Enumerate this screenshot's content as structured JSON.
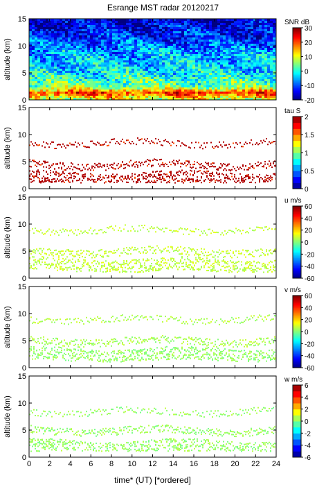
{
  "title": "Esrange MST radar 20120217",
  "chart_data": {
    "type": "heatmap",
    "title": "Esrange MST radar 20120217",
    "xlabel": "time* (UT)   [*ordered]",
    "x_range": [
      0,
      24
    ],
    "x_ticks": [
      0,
      2,
      4,
      6,
      8,
      10,
      12,
      14,
      16,
      18,
      20,
      22,
      24
    ],
    "panels": [
      {
        "name": "snr",
        "ylabel": "altitude (km)",
        "y_range": [
          0,
          15
        ],
        "y_ticks": [
          0,
          5,
          10,
          15
        ],
        "colorbar_label": "SNR dB",
        "colorbar_range": [
          -20,
          30
        ],
        "colorbar_ticks": [
          -20,
          -10,
          0,
          10,
          20,
          30
        ],
        "colorbar_type": "continuous",
        "description_profile": [
          {
            "alt": 0.5,
            "value": 10
          },
          {
            "alt": 1.5,
            "value": 22
          },
          {
            "alt": 2.5,
            "value": 5
          },
          {
            "alt": 5.0,
            "value": -2
          },
          {
            "alt": 8.5,
            "value": -5
          },
          {
            "alt": 12.0,
            "value": -12
          },
          {
            "alt": 14.5,
            "value": -16
          }
        ]
      },
      {
        "name": "tau",
        "ylabel": "altitude (km)",
        "y_range": [
          0,
          15
        ],
        "y_ticks": [
          0,
          5,
          10,
          15
        ],
        "colorbar_label": "tau S",
        "colorbar_range": [
          0,
          2
        ],
        "colorbar_ticks": [
          0,
          0.5,
          1,
          1.5,
          2
        ],
        "colorbar_type": "discrete",
        "description_profile": [
          {
            "alt": 2.0,
            "value": 2.0
          },
          {
            "alt": 4.5,
            "value": 2.0
          },
          {
            "alt": 8.5,
            "value": 2.0
          }
        ]
      },
      {
        "name": "u",
        "ylabel": "altitude (km)",
        "y_range": [
          0,
          15
        ],
        "y_ticks": [
          0,
          5,
          10,
          15
        ],
        "colorbar_label": "u m/s",
        "colorbar_range": [
          -60,
          60
        ],
        "colorbar_ticks": [
          -60,
          -40,
          -20,
          0,
          20,
          40,
          60
        ],
        "colorbar_type": "continuous",
        "description_profile": [
          {
            "alt": 2.5,
            "value": 8
          },
          {
            "alt": 5.0,
            "value": 8
          },
          {
            "alt": 9.0,
            "value": 8
          }
        ]
      },
      {
        "name": "v",
        "ylabel": "altitude (km)",
        "y_range": [
          0,
          15
        ],
        "y_ticks": [
          0,
          5,
          10,
          15
        ],
        "colorbar_label": "v m/s",
        "colorbar_range": [
          -60,
          60
        ],
        "colorbar_ticks": [
          -60,
          -40,
          -20,
          0,
          20,
          40,
          60
        ],
        "colorbar_type": "continuous",
        "description_profile": [
          {
            "alt": 2.5,
            "value": 3
          },
          {
            "alt": 5.0,
            "value": 5
          },
          {
            "alt": 9.0,
            "value": 6
          }
        ]
      },
      {
        "name": "w",
        "ylabel": "altitude (km)",
        "y_range": [
          0,
          15
        ],
        "y_ticks": [
          0,
          5,
          10,
          15
        ],
        "colorbar_label": "w m/s",
        "colorbar_range": [
          -6,
          6
        ],
        "colorbar_ticks": [
          -6,
          -4,
          -2,
          0,
          2,
          4,
          6
        ],
        "colorbar_type": "discrete",
        "description_profile": [
          {
            "alt": 2.0,
            "value": 0.3
          },
          {
            "alt": 5.0,
            "value": 0.3
          },
          {
            "alt": 8.5,
            "value": 0.3
          }
        ]
      }
    ]
  }
}
